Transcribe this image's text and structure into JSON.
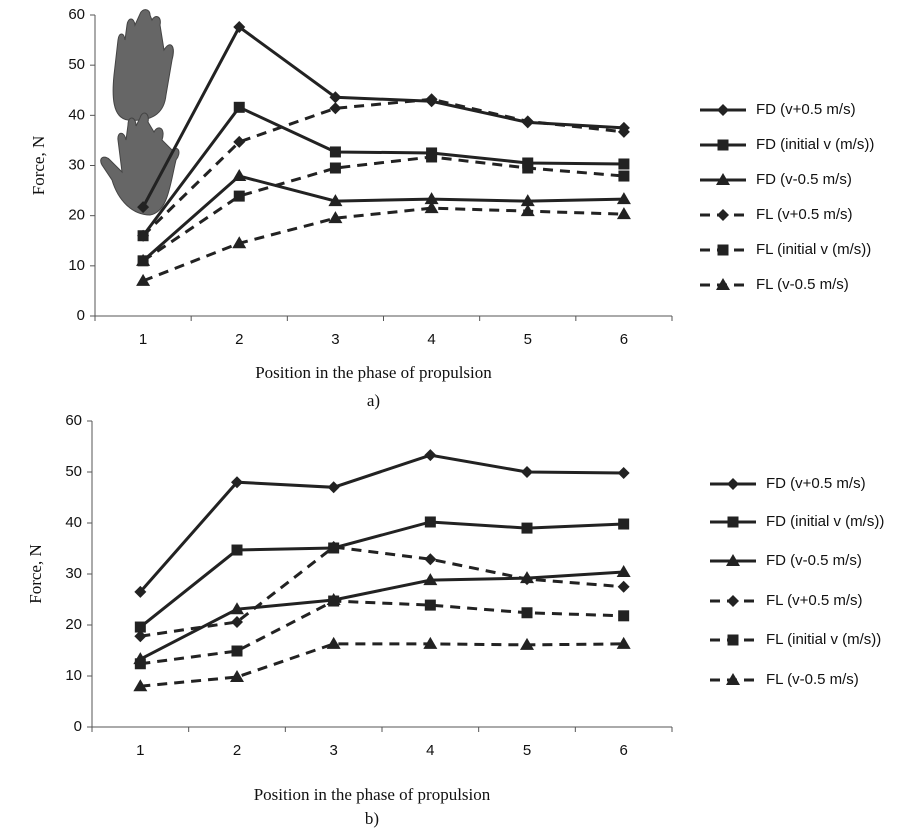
{
  "chart_data": [
    {
      "type": "line",
      "caption": "a)",
      "xlabel": "Position in the phase of propulsion",
      "ylabel": "Force, N",
      "categories": [
        "1",
        "2",
        "3",
        "4",
        "5",
        "6"
      ],
      "ylim": [
        0,
        60
      ],
      "yticks": [
        0,
        10,
        20,
        30,
        40,
        50,
        60
      ],
      "grid": false,
      "legend": "right",
      "series": [
        {
          "name": "FD (v+0.5 m/s)",
          "color": "#222222",
          "dash": false,
          "marker": "diamond",
          "values": [
            21.7,
            57.6,
            43.6,
            42.8,
            38.6,
            37.5
          ]
        },
        {
          "name": "FD (initial v (m/s))",
          "color": "#222222",
          "dash": false,
          "marker": "square",
          "values": [
            16,
            41.6,
            32.7,
            32.5,
            30.5,
            30.3
          ]
        },
        {
          "name": "FD (v-0.5 m/s)",
          "color": "#222222",
          "dash": false,
          "marker": "triangle",
          "values": [
            11,
            27.9,
            22.9,
            23.3,
            22.9,
            23.3
          ]
        },
        {
          "name": "FL (v+0.5 m/s)",
          "color": "#222222",
          "dash": true,
          "marker": "diamond",
          "values": [
            16,
            34.7,
            41.4,
            43.2,
            38.8,
            36.7
          ]
        },
        {
          "name": "FL (initial v (m/s))",
          "color": "#222222",
          "dash": true,
          "marker": "square",
          "values": [
            11,
            23.9,
            29.5,
            31.7,
            29.5,
            27.9
          ]
        },
        {
          "name": "FL (v-0.5 m/s)",
          "color": "#222222",
          "dash": true,
          "marker": "triangle",
          "values": [
            7,
            14.5,
            19.5,
            21.5,
            20.9,
            20.3
          ]
        }
      ]
    },
    {
      "type": "line",
      "caption": "b)",
      "xlabel": "Position in the phase of propulsion",
      "ylabel": "Force, N",
      "categories": [
        "1",
        "2",
        "3",
        "4",
        "5",
        "6"
      ],
      "ylim": [
        0,
        60
      ],
      "yticks": [
        0,
        10,
        20,
        30,
        40,
        50,
        60
      ],
      "grid": false,
      "legend": "right",
      "series": [
        {
          "name": "FD (v+0.5 m/s)",
          "color": "#222222",
          "dash": false,
          "marker": "diamond",
          "values": [
            26.5,
            48,
            47,
            53.3,
            50,
            49.8
          ]
        },
        {
          "name": "FD (initial v (m/s))",
          "color": "#222222",
          "dash": false,
          "marker": "square",
          "values": [
            19.6,
            34.7,
            35.1,
            40.2,
            39,
            39.8
          ]
        },
        {
          "name": "FD (v-0.5 m/s)",
          "color": "#222222",
          "dash": false,
          "marker": "triangle",
          "values": [
            13.3,
            23.1,
            24.9,
            28.8,
            29.2,
            30.4
          ]
        },
        {
          "name": "FL (v+0.5 m/s)",
          "color": "#222222",
          "dash": true,
          "marker": "diamond",
          "values": [
            17.8,
            20.6,
            35.3,
            32.9,
            29,
            27.5
          ]
        },
        {
          "name": "FL (initial v (m/s))",
          "color": "#222222",
          "dash": true,
          "marker": "square",
          "values": [
            12.4,
            14.9,
            24.7,
            23.9,
            22.4,
            21.8
          ]
        },
        {
          "name": "FL (v-0.5 m/s)",
          "color": "#222222",
          "dash": true,
          "marker": "triangle",
          "values": [
            8,
            9.8,
            16.3,
            16.3,
            16.1,
            16.3
          ]
        }
      ]
    }
  ]
}
